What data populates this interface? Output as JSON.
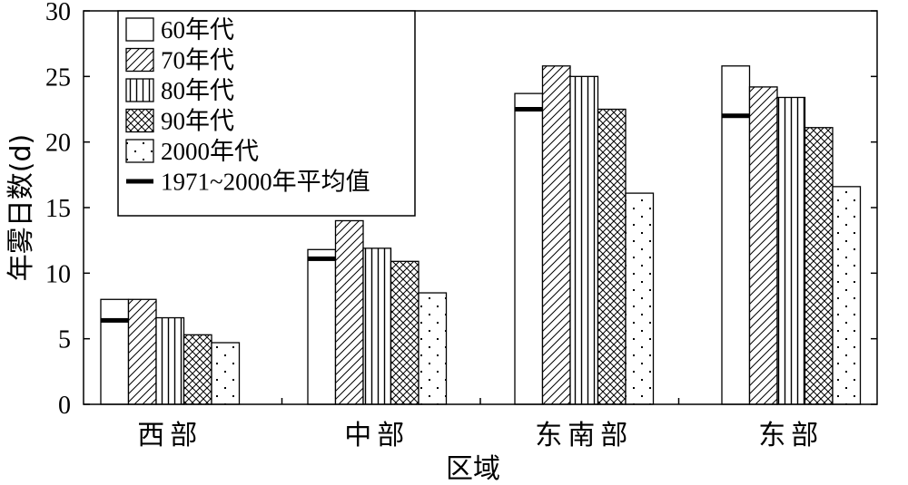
{
  "chart_data": {
    "type": "bar",
    "categories": [
      "西部",
      "中部",
      "东南部",
      "东部"
    ],
    "series": [
      {
        "name": "60年代",
        "values": [
          8.0,
          11.8,
          23.7,
          25.8
        ],
        "pattern": "plain"
      },
      {
        "name": "70年代",
        "values": [
          8.0,
          14.0,
          25.8,
          24.2
        ],
        "pattern": "diagonal"
      },
      {
        "name": "80年代",
        "values": [
          6.6,
          11.9,
          25.0,
          23.4
        ],
        "pattern": "vertical"
      },
      {
        "name": "90年代",
        "values": [
          5.3,
          10.9,
          22.5,
          21.1
        ],
        "pattern": "crosshatch"
      },
      {
        "name": "2000年代",
        "values": [
          4.7,
          8.5,
          16.1,
          16.6
        ],
        "pattern": "dots"
      }
    ],
    "average": {
      "name": "1971~2000年平均值",
      "values": [
        6.4,
        11.1,
        22.5,
        22.0
      ]
    },
    "xlabel": "区域",
    "ylabel": "年雾日数(d)",
    "ylim": [
      0,
      30
    ],
    "yticks": [
      0,
      5,
      10,
      15,
      20,
      25,
      30
    ],
    "legend_position": "top-left",
    "grid": false
  }
}
